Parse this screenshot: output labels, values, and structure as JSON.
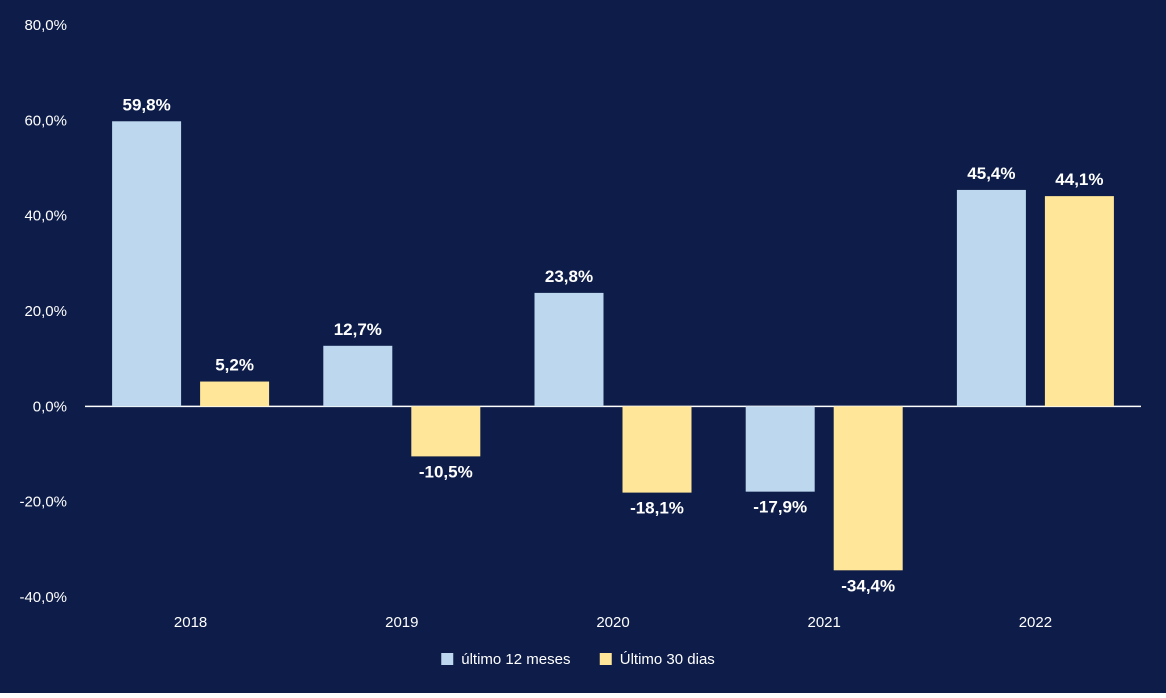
{
  "chart_data": {
    "type": "bar",
    "categories": [
      "2018",
      "2019",
      "2020",
      "2021",
      "2022"
    ],
    "series": [
      {
        "name": "último 12 meses",
        "color": "#BDD7EE",
        "values": [
          59.8,
          12.7,
          23.8,
          -17.9,
          45.4
        ],
        "labels": [
          "59,8%",
          "12,7%",
          "23,8%",
          "-17,9%",
          "45,4%"
        ]
      },
      {
        "name": "Último 30 dias",
        "color": "#FFE699",
        "values": [
          5.2,
          -10.5,
          -18.1,
          -34.4,
          44.1
        ],
        "labels": [
          "5,2%",
          "-10,5%",
          "-18,1%",
          "-34,4%",
          "44,1%"
        ]
      }
    ],
    "ylim": [
      -40,
      80
    ],
    "yticks": [
      80,
      60,
      40,
      20,
      0,
      -20,
      -40
    ],
    "ytick_labels": [
      "80,0%",
      "60,0%",
      "40,0%",
      "20,0%",
      "0,0%",
      "-20,0%",
      "-40,0%"
    ],
    "grid": false,
    "legend": "bottom-center",
    "background": "#0D1C48",
    "text_color": "#FFFFFF"
  }
}
